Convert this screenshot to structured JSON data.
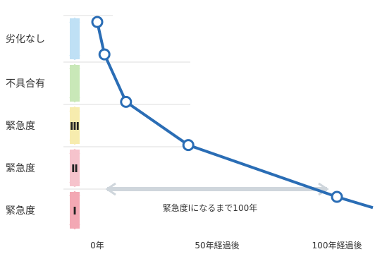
{
  "chart_data": {
    "type": "line",
    "title": "",
    "xlabel": "",
    "ylabel": "",
    "x_ticks": [
      "0年",
      "50年経過後",
      "100年経過後"
    ],
    "levels": [
      {
        "label": "劣化なし",
        "color": "#bfe0f5"
      },
      {
        "label": "不具合有",
        "color": "#c9e8b8"
      },
      {
        "label": "緊急度",
        "roman": "Ⅲ",
        "color": "#f7ecae"
      },
      {
        "label": "緊急度",
        "roman": "Ⅱ",
        "color": "#f6c3cc"
      },
      {
        "label": "緊急度",
        "roman": "Ⅰ",
        "color": "#f3a8b4"
      }
    ],
    "series": [
      {
        "x": [
          0,
          3,
          12,
          38,
          100
        ],
        "y": [
          4.85,
          4.1,
          3.0,
          2.0,
          0.8
        ]
      }
    ],
    "extension_x": [
      100,
      115
    ],
    "extension_y": [
      0.8,
      0.55
    ],
    "annotation": {
      "text": "緊急度Ⅰになるまで100年",
      "x_from": 0,
      "x_to": 100
    },
    "line_color": "#2a6db5",
    "point_fill": "#ffffff"
  }
}
